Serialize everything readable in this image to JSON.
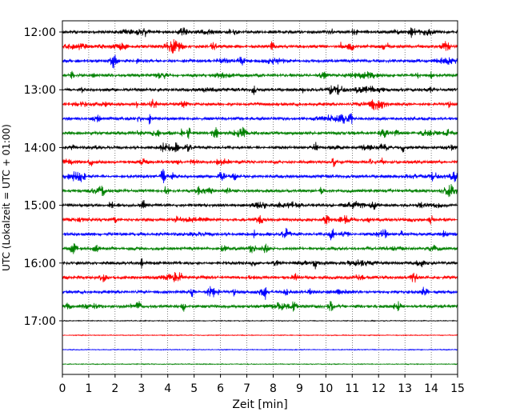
{
  "chart_data": {
    "type": "line",
    "title": "",
    "xlabel": "Zeit  [min]",
    "ylabel": "UTC (Lokalzeit = UTC + 01:00)",
    "xlim": [
      0,
      15
    ],
    "x_ticks": [
      0,
      1,
      2,
      3,
      4,
      5,
      6,
      7,
      8,
      9,
      10,
      11,
      12,
      13,
      14,
      15
    ],
    "y_ticks": [
      "12:00",
      "13:00",
      "14:00",
      "15:00",
      "16:00",
      "17:00"
    ],
    "grid": "vertical dotted",
    "trace_interval_minutes": 15,
    "trace_colors": [
      "#000000",
      "#ff0000",
      "#0000ff",
      "#008000"
    ],
    "traces": [
      {
        "start": "12:00",
        "color": "#000000"
      },
      {
        "start": "12:15",
        "color": "#ff0000"
      },
      {
        "start": "12:30",
        "color": "#0000ff"
      },
      {
        "start": "12:45",
        "color": "#008000"
      },
      {
        "start": "13:00",
        "color": "#000000"
      },
      {
        "start": "13:15",
        "color": "#ff0000"
      },
      {
        "start": "13:30",
        "color": "#0000ff"
      },
      {
        "start": "13:45",
        "color": "#008000"
      },
      {
        "start": "14:00",
        "color": "#000000"
      },
      {
        "start": "14:15",
        "color": "#ff0000"
      },
      {
        "start": "14:30",
        "color": "#0000ff"
      },
      {
        "start": "14:45",
        "color": "#008000"
      },
      {
        "start": "15:00",
        "color": "#000000"
      },
      {
        "start": "15:15",
        "color": "#ff0000"
      },
      {
        "start": "15:30",
        "color": "#0000ff"
      },
      {
        "start": "15:45",
        "color": "#008000"
      },
      {
        "start": "16:00",
        "color": "#000000"
      },
      {
        "start": "16:15",
        "color": "#ff0000"
      },
      {
        "start": "16:30",
        "color": "#0000ff"
      },
      {
        "start": "16:45",
        "color": "#008000"
      },
      {
        "start": "17:00",
        "color": "#000000"
      },
      {
        "start": "17:15",
        "color": "#ff0000"
      },
      {
        "start": "17:30",
        "color": "#0000ff"
      },
      {
        "start": "17:45",
        "color": "#008000"
      }
    ]
  }
}
